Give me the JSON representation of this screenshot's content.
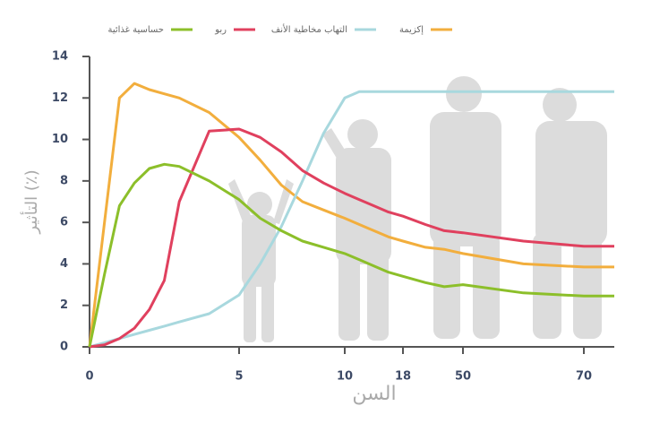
{
  "chart_data": {
    "type": "line",
    "x_label": "السن",
    "y_label": "التأثير (٪)",
    "x": [
      0,
      0.5,
      1,
      1.5,
      2,
      2.5,
      3,
      4,
      5,
      6,
      7,
      8,
      9,
      10,
      12,
      14,
      16,
      18,
      30,
      40,
      50,
      60,
      70,
      75
    ],
    "xlim": [
      0,
      75
    ],
    "xticks": [
      0,
      5,
      10,
      18,
      50,
      70
    ],
    "ylim": [
      0,
      14
    ],
    "yticks": [
      0,
      2,
      4,
      6,
      8,
      10,
      12,
      14
    ],
    "series": [
      {
        "name": "إكزيمة",
        "color": "#f2ae3d",
        "values": [
          0,
          6,
          12.0,
          12.7,
          12.4,
          12.2,
          12.0,
          11.3,
          10.1,
          9.0,
          7.8,
          7.0,
          6.6,
          6.2,
          5.9,
          5.6,
          5.3,
          5.1,
          4.8,
          4.7,
          4.5,
          4.0,
          3.85,
          3.85
        ]
      },
      {
        "name": "التهاب مخاطية الأنف",
        "color": "#a8d8de",
        "values": [
          0,
          0.2,
          0.4,
          0.6,
          0.8,
          1.0,
          1.2,
          1.6,
          2.5,
          4.0,
          5.8,
          8.0,
          10.3,
          12.0,
          12.3,
          12.3,
          12.3,
          12.3,
          12.3,
          12.3,
          12.3,
          12.3,
          12.3,
          12.3
        ]
      },
      {
        "name": "ربو",
        "color": "#e0405e",
        "values": [
          0,
          0.1,
          0.4,
          0.9,
          1.8,
          3.2,
          7.0,
          10.4,
          10.5,
          10.1,
          9.4,
          8.5,
          7.9,
          7.4,
          7.1,
          6.8,
          6.5,
          6.3,
          5.9,
          5.6,
          5.5,
          5.1,
          4.85,
          4.85
        ]
      },
      {
        "name": "حساسية غذائية",
        "color": "#8cbf2a",
        "values": [
          0,
          3.5,
          6.8,
          7.9,
          8.6,
          8.8,
          8.7,
          8.0,
          7.1,
          6.2,
          5.6,
          5.1,
          4.8,
          4.5,
          4.2,
          3.9,
          3.6,
          3.4,
          3.1,
          2.9,
          3.0,
          2.6,
          2.45,
          2.45
        ]
      }
    ]
  }
}
